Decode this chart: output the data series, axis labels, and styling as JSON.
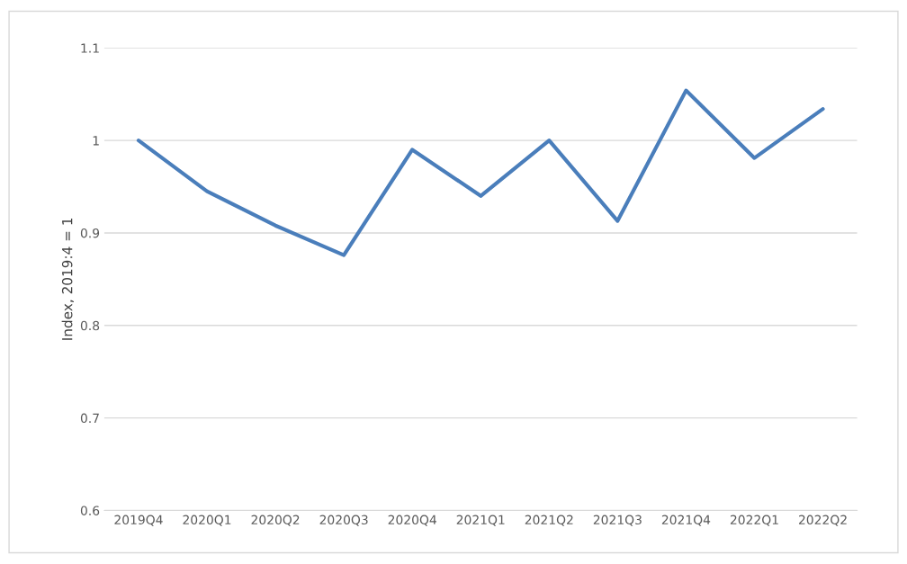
{
  "chart_data": {
    "type": "line",
    "ylabel": "Index, 2019:4 = 1",
    "categories": [
      "2019Q4",
      "2020Q1",
      "2020Q2",
      "2020Q3",
      "2020Q4",
      "2021Q1",
      "2021Q2",
      "2021Q3",
      "2021Q4",
      "2022Q1",
      "2022Q2"
    ],
    "series": [
      {
        "color": "#4a7ebb",
        "values": [
          1.0,
          0.945,
          0.908,
          0.876,
          0.99,
          0.94,
          1.0,
          0.913,
          1.054,
          0.981,
          1.034
        ]
      }
    ],
    "ylim": [
      0.6,
      1.1
    ],
    "yticks": [
      0.6,
      0.7,
      0.8,
      0.9,
      1,
      1.1
    ],
    "grid": "y",
    "marker": "none",
    "line_style": "solid"
  }
}
